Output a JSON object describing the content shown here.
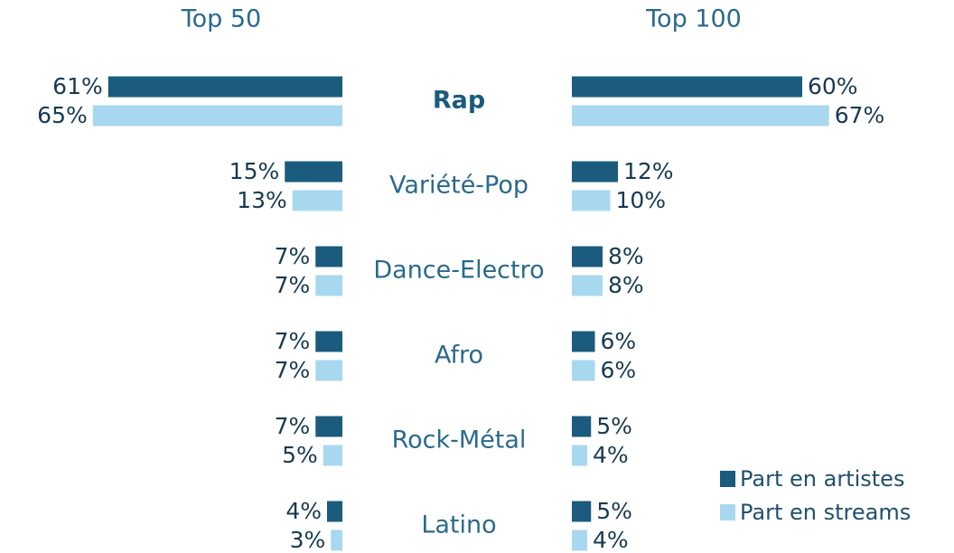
{
  "chart_data": {
    "type": "butterfly-bar",
    "groups": [
      "Top 50",
      "Top 100"
    ],
    "categories": [
      "Rap",
      "Variété-Pop",
      "Dance-Electro",
      "Afro",
      "Rock-Métal",
      "Latino"
    ],
    "series": [
      {
        "name": "Part en artistes",
        "color": "#1a5b7e",
        "values": [
          [
            61,
            15,
            7,
            7,
            7,
            4
          ],
          [
            60,
            12,
            8,
            6,
            5,
            5
          ]
        ],
        "value_labels": [
          [
            "61%",
            "15%",
            "7%",
            "7%",
            "7%",
            "4%"
          ],
          [
            "60%",
            "12%",
            "8%",
            "6%",
            "5%",
            "5%"
          ]
        ]
      },
      {
        "name": "Part en streams",
        "color": "#a8d8f0",
        "values": [
          [
            65,
            13,
            7,
            7,
            5,
            3
          ],
          [
            67,
            10,
            8,
            6,
            4,
            4
          ]
        ],
        "value_labels": [
          [
            "65%",
            "13%",
            "7%",
            "7%",
            "5%",
            "3%"
          ],
          [
            "67%",
            "10%",
            "8%",
            "6%",
            "4%",
            "4%"
          ]
        ]
      }
    ],
    "legend": "bottom-right"
  }
}
